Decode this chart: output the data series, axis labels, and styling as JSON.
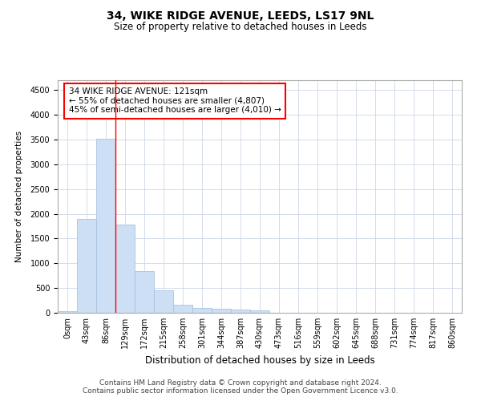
{
  "title": "34, WIKE RIDGE AVENUE, LEEDS, LS17 9NL",
  "subtitle": "Size of property relative to detached houses in Leeds",
  "xlabel": "Distribution of detached houses by size in Leeds",
  "ylabel": "Number of detached properties",
  "bar_labels": [
    "0sqm",
    "43sqm",
    "86sqm",
    "129sqm",
    "172sqm",
    "215sqm",
    "258sqm",
    "301sqm",
    "344sqm",
    "387sqm",
    "430sqm",
    "473sqm",
    "516sqm",
    "559sqm",
    "602sqm",
    "645sqm",
    "688sqm",
    "731sqm",
    "774sqm",
    "817sqm",
    "860sqm"
  ],
  "bar_values": [
    30,
    1900,
    3510,
    1780,
    840,
    450,
    160,
    100,
    75,
    60,
    50,
    0,
    0,
    0,
    0,
    0,
    0,
    0,
    0,
    0,
    0
  ],
  "bar_color": "#ccdff5",
  "bar_edge_color": "#a8c4e0",
  "highlight_x_pos": 2.5,
  "highlight_color": "red",
  "annotation_line1": "34 WIKE RIDGE AVENUE: 121sqm",
  "annotation_line2": "← 55% of detached houses are smaller (4,807)",
  "annotation_line3": "45% of semi-detached houses are larger (4,010) →",
  "ylim": [
    0,
    4700
  ],
  "yticks": [
    0,
    500,
    1000,
    1500,
    2000,
    2500,
    3000,
    3500,
    4000,
    4500
  ],
  "xlim_min": -0.5,
  "xlim_max": 20.5,
  "footer_line1": "Contains HM Land Registry data © Crown copyright and database right 2024.",
  "footer_line2": "Contains public sector information licensed under the Open Government Licence v3.0.",
  "background_color": "#ffffff",
  "grid_color": "#ccd6e8",
  "title_fontsize": 10,
  "subtitle_fontsize": 8.5,
  "xlabel_fontsize": 8.5,
  "ylabel_fontsize": 7.5,
  "tick_fontsize": 7,
  "annotation_fontsize": 7.5,
  "footer_fontsize": 6.5
}
